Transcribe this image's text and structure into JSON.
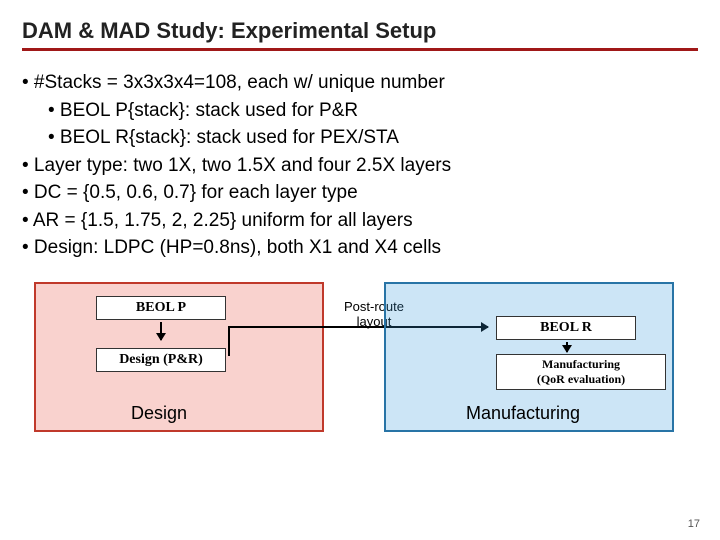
{
  "title": "DAM & MAD Study: Experimental Setup",
  "bullets": {
    "l1a": "• #Stacks = 3x3x3x4=108, each w/ unique number",
    "l2a": "• BEOL P{stack}: stack used for P&R",
    "l2b": "• BEOL R{stack}: stack used for PEX/STA",
    "l1b": "• Layer type: two 1X, two 1.5X and four 2.5X layers",
    "l1c": "• DC = {0.5, 0.6, 0.7} for each layer type",
    "l1d": "• AR = {1.5, 1.75, 2, 2.25} uniform for all layers",
    "l1e": "• Design: LDPC (HP=0.8ns), both X1 and X4 cells"
  },
  "diagram": {
    "left": {
      "beolp": "BEOL P",
      "designpr": "Design (P&R)",
      "title": "Design"
    },
    "right": {
      "beolr": "BEOL R",
      "manuf_line1": "Manufacturing",
      "manuf_line2": "(QoR evaluation)",
      "title": "Manufacturing"
    },
    "connector_label_line1": "Post-route",
    "connector_label_line2": "layout"
  },
  "page_number": "17",
  "colors": {
    "rule": "#a01818",
    "left_border": "#c0392b",
    "left_fill": "rgba(231,76,60,0.25)",
    "right_border": "#2874a6",
    "right_fill": "rgba(52,152,219,0.25)"
  }
}
